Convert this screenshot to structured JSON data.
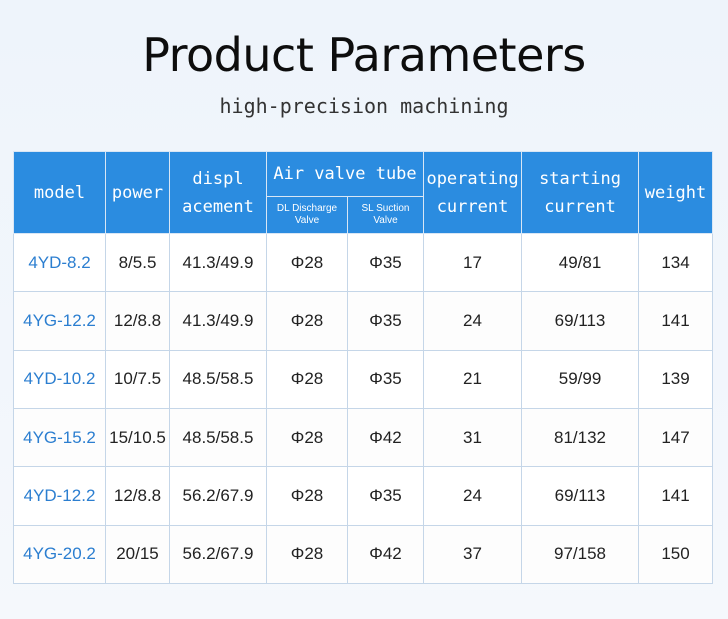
{
  "title": "Product Parameters",
  "subtitle": "high-precision machining",
  "headers": {
    "model": "model",
    "power": "power",
    "displacement": "displ acement",
    "air_valve_tube": "Air valve tube",
    "dl": "DL Discharge Valve",
    "sl": "SL Suction Valve",
    "operating_current": "operating current",
    "starting_current": "starting current",
    "weight": "weight"
  },
  "rows": [
    {
      "model": "4YD-8.2",
      "power": "8/5.5",
      "displacement": "41.3/49.9",
      "dl": "Φ28",
      "sl": "Φ35",
      "operating": "17",
      "starting": "49/81",
      "weight": "134"
    },
    {
      "model": "4YG-12.2",
      "power": "12/8.8",
      "displacement": "41.3/49.9",
      "dl": "Φ28",
      "sl": "Φ35",
      "operating": "24",
      "starting": "69/113",
      "weight": "141"
    },
    {
      "model": "4YD-10.2",
      "power": "10/7.5",
      "displacement": "48.5/58.5",
      "dl": "Φ28",
      "sl": "Φ35",
      "operating": "21",
      "starting": "59/99",
      "weight": "139"
    },
    {
      "model": "4YG-15.2",
      "power": "15/10.5",
      "displacement": "48.5/58.5",
      "dl": "Φ28",
      "sl": "Φ42",
      "operating": "31",
      "starting": "81/132",
      "weight": "147"
    },
    {
      "model": "4YD-12.2",
      "power": "12/8.8",
      "displacement": "56.2/67.9",
      "dl": "Φ28",
      "sl": "Φ35",
      "operating": "24",
      "starting": "69/113",
      "weight": "141"
    },
    {
      "model": "4YG-20.2",
      "power": "20/15",
      "displacement": "56.2/67.9",
      "dl": "Φ28",
      "sl": "Φ42",
      "operating": "37",
      "starting": "97/158",
      "weight": "150"
    }
  ]
}
